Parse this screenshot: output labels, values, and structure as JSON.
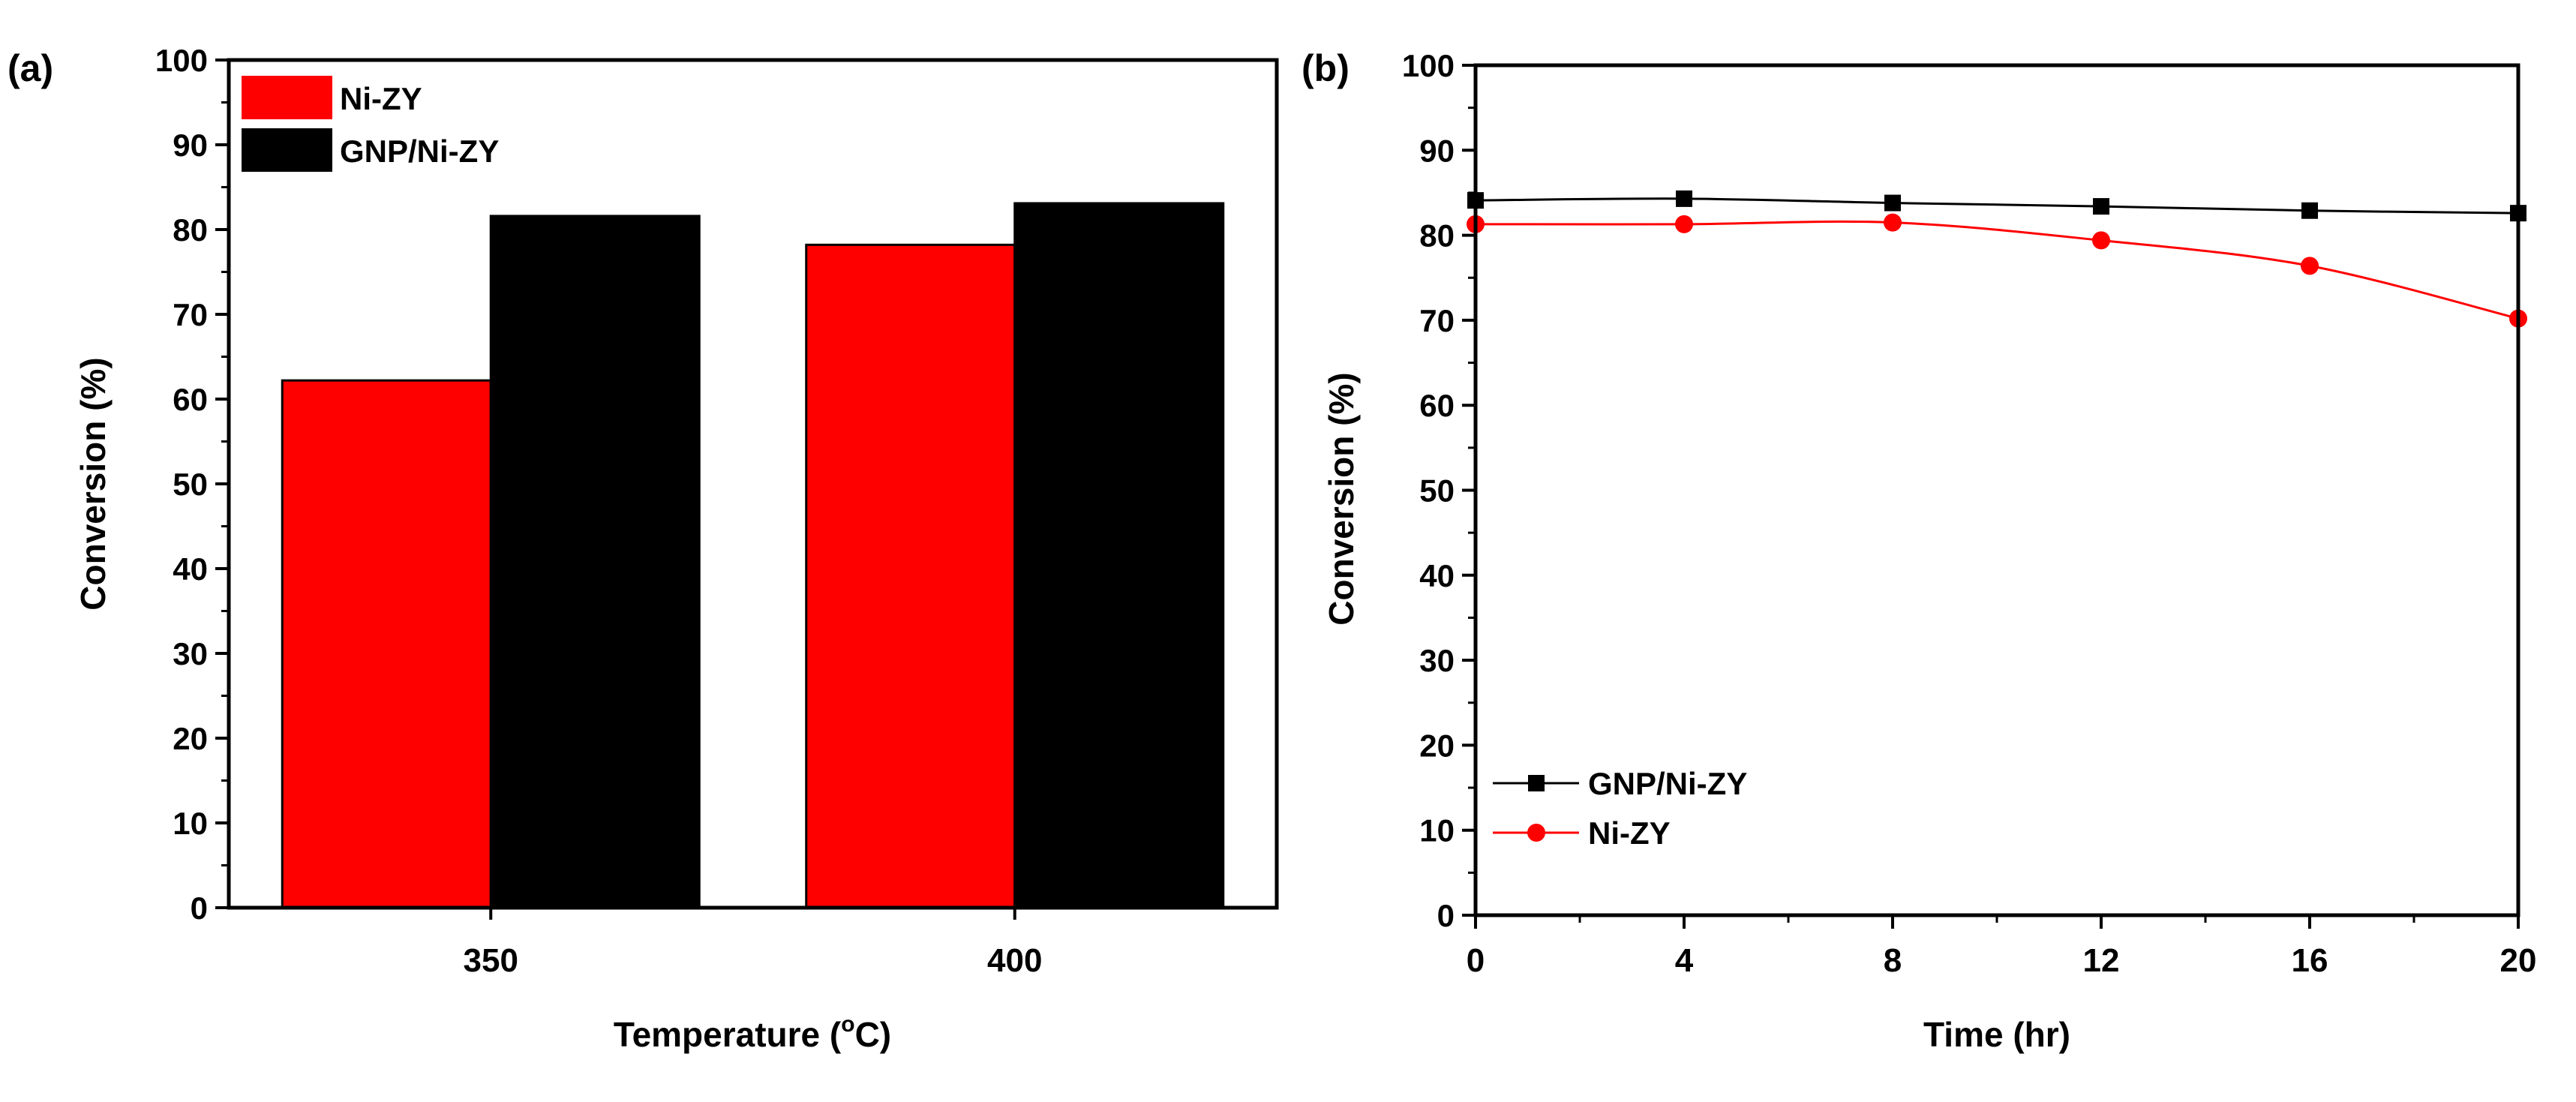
{
  "colors": {
    "ni_zy": "#ff0000",
    "gnp_ni_zy": "#000000",
    "axis": "#000000",
    "background": "#ffffff"
  },
  "chart_data": [
    {
      "type": "bar",
      "panel_label": "(a)",
      "title": "",
      "xlabel": "Temperature (°C)",
      "xlabel_parts": {
        "prefix": "Temperature (",
        "degree": "o",
        "suffix": "C)"
      },
      "ylabel": "Conversion (%)",
      "categories": [
        "350",
        "400"
      ],
      "ylim": [
        0,
        100
      ],
      "yticks": [
        0,
        10,
        20,
        30,
        40,
        50,
        60,
        70,
        80,
        90,
        100
      ],
      "series": [
        {
          "name": "Ni-ZY",
          "color": "#ff0000",
          "values": [
            62.2,
            78.2
          ]
        },
        {
          "name": "GNP/Ni-ZY",
          "color": "#000000",
          "values": [
            81.6,
            83.1
          ]
        }
      ],
      "legend": {
        "position": "top-left",
        "entries": [
          "Ni-ZY",
          "GNP/Ni-ZY"
        ]
      },
      "grid": false
    },
    {
      "type": "line",
      "panel_label": "(b)",
      "title": "",
      "xlabel": "Time (hr)",
      "ylabel": "Conversion (%)",
      "x": [
        0,
        4,
        8,
        12,
        16,
        20
      ],
      "xlim": [
        0,
        20
      ],
      "ylim": [
        0,
        100
      ],
      "xticks": [
        0,
        4,
        8,
        12,
        16,
        20
      ],
      "yticks": [
        0,
        10,
        20,
        30,
        40,
        50,
        60,
        70,
        80,
        90,
        100
      ],
      "series": [
        {
          "name": "GNP/Ni-ZY",
          "color": "#000000",
          "marker": "square",
          "values": [
            84.1,
            84.3,
            83.8,
            83.4,
            82.9,
            82.6
          ]
        },
        {
          "name": "Ni-ZY",
          "color": "#ff0000",
          "marker": "circle",
          "values": [
            81.3,
            81.3,
            81.5,
            79.4,
            76.4,
            70.2
          ]
        }
      ],
      "legend": {
        "position": "bottom-left",
        "entries": [
          "GNP/Ni-ZY",
          "Ni-ZY"
        ]
      },
      "grid": false
    }
  ]
}
